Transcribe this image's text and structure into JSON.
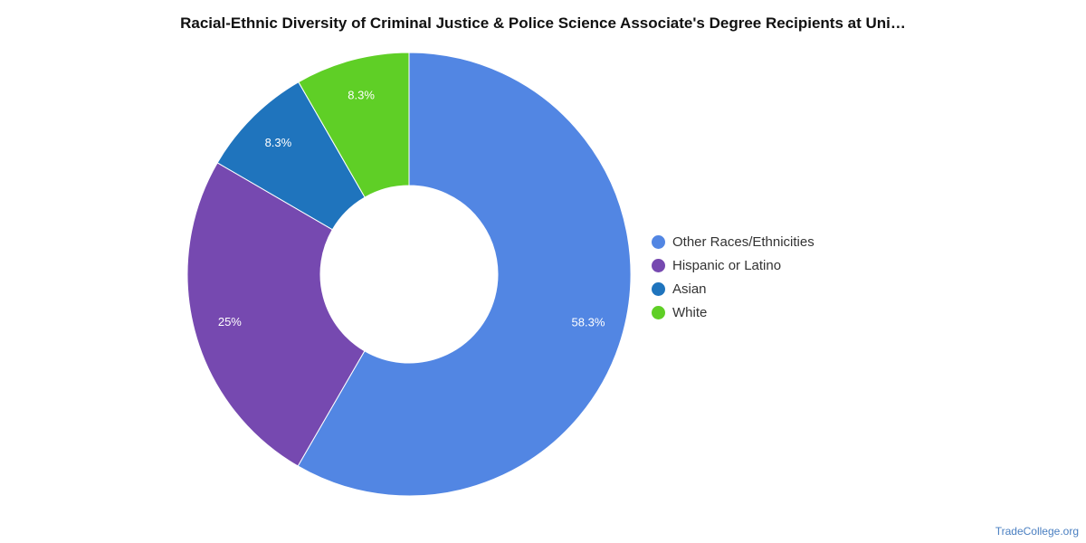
{
  "chart_data": {
    "type": "pie",
    "title": "Racial-Ethnic Diversity of Criminal Justice & Police Science Associate's Degree Recipients at Uni…",
    "donut": true,
    "legend_position": "right",
    "series": [
      {
        "name": "Other Races/Ethnicities",
        "value": 58.3,
        "label": "58.3%",
        "color": "#5286e3"
      },
      {
        "name": "Hispanic or Latino",
        "value": 25,
        "label": "25%",
        "color": "#7649b0"
      },
      {
        "name": "Asian",
        "value": 8.3,
        "label": "8.3%",
        "color": "#1f74bd"
      },
      {
        "name": "White",
        "value": 8.3,
        "label": "8.3%",
        "color": "#5fcf26"
      }
    ]
  },
  "watermark": "TradeCollege.org"
}
